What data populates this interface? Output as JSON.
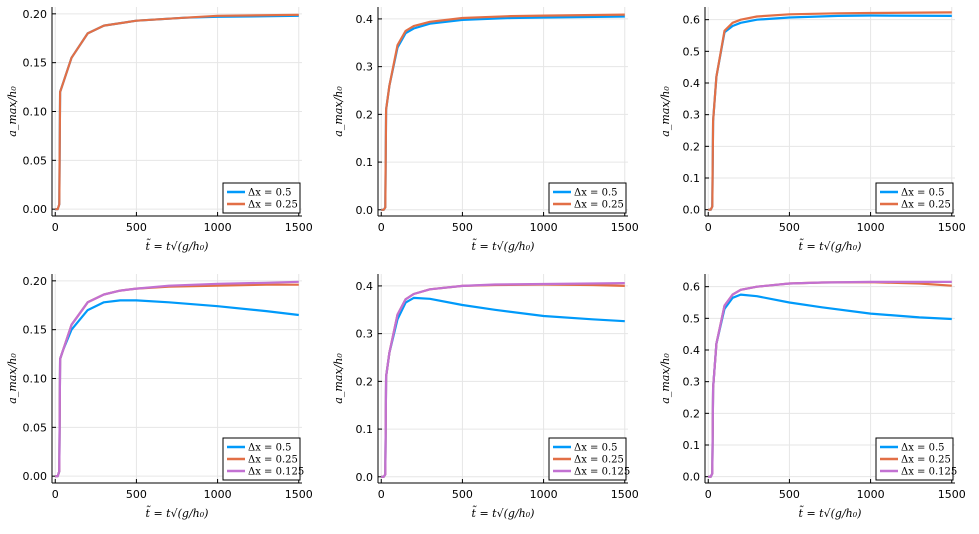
{
  "chart_data": [
    {
      "type": "line",
      "xlabel": "t̃ = t√(g/h₀)",
      "ylabel": "a_max/h₀",
      "xlim": [
        -20,
        1520
      ],
      "ylim": [
        -0.007,
        0.207
      ],
      "xticks": [
        0,
        500,
        1000,
        1500
      ],
      "yticks": [
        0.0,
        0.05,
        0.1,
        0.15,
        0.2
      ],
      "ytick_labels": [
        "0.00",
        "0.05",
        "0.10",
        "0.15",
        "0.20"
      ],
      "grid": true,
      "legend_position": "bottom-right",
      "x": [
        0,
        15,
        25,
        30,
        50,
        100,
        200,
        300,
        500,
        800,
        1000,
        1500
      ],
      "series": [
        {
          "name": "Δx = 0.5",
          "color": "#009AFA",
          "values": [
            0.0,
            0.0,
            0.005,
            0.12,
            0.13,
            0.155,
            0.18,
            0.188,
            0.193,
            0.196,
            0.197,
            0.198
          ]
        },
        {
          "name": "Δx = 0.25",
          "color": "#E26F46",
          "values": [
            0.0,
            0.0,
            0.005,
            0.12,
            0.13,
            0.155,
            0.18,
            0.188,
            0.193,
            0.196,
            0.198,
            0.199
          ]
        }
      ]
    },
    {
      "type": "line",
      "xlabel": "t̃ = t√(g/h₀)",
      "ylabel": "a_max/h₀",
      "xlim": [
        -20,
        1520
      ],
      "ylim": [
        -0.013,
        0.425
      ],
      "xticks": [
        0,
        500,
        1000,
        1500
      ],
      "yticks": [
        0.0,
        0.1,
        0.2,
        0.3,
        0.4
      ],
      "ytick_labels": [
        "0.0",
        "0.1",
        "0.2",
        "0.3",
        "0.4"
      ],
      "grid": true,
      "legend_position": "bottom-right",
      "x": [
        0,
        15,
        25,
        30,
        50,
        100,
        150,
        200,
        300,
        500,
        800,
        1000,
        1500
      ],
      "series": [
        {
          "name": "Δx = 0.5",
          "color": "#009AFA",
          "values": [
            0.0,
            0.0,
            0.005,
            0.21,
            0.26,
            0.34,
            0.37,
            0.38,
            0.39,
            0.398,
            0.402,
            0.403,
            0.405
          ]
        },
        {
          "name": "Δx = 0.25",
          "color": "#E26F46",
          "values": [
            0.0,
            0.0,
            0.005,
            0.21,
            0.26,
            0.345,
            0.375,
            0.385,
            0.394,
            0.402,
            0.406,
            0.407,
            0.409
          ]
        }
      ]
    },
    {
      "type": "line",
      "xlabel": "t̃ = t√(g/h₀)",
      "ylabel": "a_max/h₀",
      "xlim": [
        -20,
        1520
      ],
      "ylim": [
        -0.02,
        0.64
      ],
      "xticks": [
        0,
        500,
        1000,
        1500
      ],
      "yticks": [
        0.0,
        0.1,
        0.2,
        0.3,
        0.4,
        0.5,
        0.6
      ],
      "ytick_labels": [
        "0.0",
        "0.1",
        "0.2",
        "0.3",
        "0.4",
        "0.5",
        "0.6"
      ],
      "grid": true,
      "legend_position": "bottom-right",
      "x": [
        0,
        15,
        25,
        30,
        50,
        100,
        150,
        200,
        300,
        500,
        800,
        1000,
        1500
      ],
      "series": [
        {
          "name": "Δx = 0.5",
          "color": "#009AFA",
          "values": [
            0.0,
            0.0,
            0.01,
            0.28,
            0.42,
            0.56,
            0.58,
            0.59,
            0.6,
            0.607,
            0.612,
            0.613,
            0.612
          ]
        },
        {
          "name": "Δx = 0.25",
          "color": "#E26F46",
          "values": [
            0.0,
            0.0,
            0.01,
            0.28,
            0.42,
            0.565,
            0.59,
            0.6,
            0.61,
            0.617,
            0.62,
            0.621,
            0.623
          ]
        }
      ]
    },
    {
      "type": "line",
      "xlabel": "t̃ = t√(g/h₀)",
      "ylabel": "a_max/h₀",
      "xlim": [
        -20,
        1520
      ],
      "ylim": [
        -0.007,
        0.207
      ],
      "xticks": [
        0,
        500,
        1000,
        1500
      ],
      "yticks": [
        0.0,
        0.05,
        0.1,
        0.15,
        0.2
      ],
      "ytick_labels": [
        "0.00",
        "0.05",
        "0.10",
        "0.15",
        "0.20"
      ],
      "grid": true,
      "legend_position": "bottom-right",
      "x": [
        0,
        15,
        25,
        30,
        50,
        100,
        200,
        300,
        400,
        500,
        700,
        1000,
        1300,
        1500
      ],
      "series": [
        {
          "name": "Δx = 0.5",
          "color": "#009AFA",
          "values": [
            0.0,
            0.0,
            0.005,
            0.12,
            0.13,
            0.15,
            0.17,
            0.178,
            0.18,
            0.18,
            0.178,
            0.174,
            0.169,
            0.165
          ]
        },
        {
          "name": "Δx = 0.25",
          "color": "#E26F46",
          "values": [
            0.0,
            0.0,
            0.005,
            0.12,
            0.13,
            0.155,
            0.178,
            0.186,
            0.19,
            0.192,
            0.194,
            0.195,
            0.196,
            0.196
          ]
        },
        {
          "name": "Δx = 0.125",
          "color": "#C271D2",
          "values": [
            0.0,
            0.0,
            0.005,
            0.12,
            0.13,
            0.155,
            0.178,
            0.186,
            0.19,
            0.192,
            0.195,
            0.197,
            0.198,
            0.199
          ]
        }
      ]
    },
    {
      "type": "line",
      "xlabel": "t̃ = t√(g/h₀)",
      "ylabel": "a_max/h₀",
      "xlim": [
        -20,
        1520
      ],
      "ylim": [
        -0.013,
        0.425
      ],
      "xticks": [
        0,
        500,
        1000,
        1500
      ],
      "yticks": [
        0.0,
        0.1,
        0.2,
        0.3,
        0.4
      ],
      "ytick_labels": [
        "0.0",
        "0.1",
        "0.2",
        "0.3",
        "0.4"
      ],
      "grid": true,
      "legend_position": "bottom-right",
      "x": [
        0,
        15,
        25,
        30,
        50,
        100,
        150,
        200,
        300,
        500,
        700,
        1000,
        1300,
        1500
      ],
      "series": [
        {
          "name": "Δx = 0.5",
          "color": "#009AFA",
          "values": [
            0.0,
            0.0,
            0.005,
            0.21,
            0.26,
            0.33,
            0.365,
            0.375,
            0.373,
            0.36,
            0.35,
            0.337,
            0.33,
            0.326
          ]
        },
        {
          "name": "Δx = 0.25",
          "color": "#E26F46",
          "values": [
            0.0,
            0.0,
            0.005,
            0.21,
            0.26,
            0.34,
            0.372,
            0.383,
            0.393,
            0.4,
            0.402,
            0.403,
            0.402,
            0.4
          ]
        },
        {
          "name": "Δx = 0.125",
          "color": "#C271D2",
          "values": [
            0.0,
            0.0,
            0.005,
            0.21,
            0.26,
            0.34,
            0.372,
            0.383,
            0.393,
            0.4,
            0.403,
            0.404,
            0.405,
            0.406
          ]
        }
      ]
    },
    {
      "type": "line",
      "xlabel": "t̃ = t√(g/h₀)",
      "ylabel": "a_max/h₀",
      "xlim": [
        -20,
        1520
      ],
      "ylim": [
        -0.02,
        0.64
      ],
      "xticks": [
        0,
        500,
        1000,
        1500
      ],
      "yticks": [
        0.0,
        0.1,
        0.2,
        0.3,
        0.4,
        0.5,
        0.6
      ],
      "ytick_labels": [
        "0.0",
        "0.1",
        "0.2",
        "0.3",
        "0.4",
        "0.5",
        "0.6"
      ],
      "grid": true,
      "legend_position": "bottom-right",
      "x": [
        0,
        15,
        25,
        30,
        50,
        100,
        150,
        200,
        300,
        500,
        700,
        1000,
        1300,
        1500
      ],
      "series": [
        {
          "name": "Δx = 0.5",
          "color": "#009AFA",
          "values": [
            0.0,
            0.0,
            0.01,
            0.28,
            0.42,
            0.53,
            0.565,
            0.575,
            0.57,
            0.55,
            0.535,
            0.515,
            0.503,
            0.498
          ]
        },
        {
          "name": "Δx = 0.25",
          "color": "#E26F46",
          "values": [
            0.0,
            0.0,
            0.01,
            0.28,
            0.42,
            0.54,
            0.575,
            0.59,
            0.6,
            0.61,
            0.613,
            0.614,
            0.61,
            0.603
          ]
        },
        {
          "name": "Δx = 0.125",
          "color": "#C271D2",
          "values": [
            0.0,
            0.0,
            0.01,
            0.28,
            0.42,
            0.54,
            0.575,
            0.59,
            0.6,
            0.61,
            0.613,
            0.615,
            0.615,
            0.615
          ]
        }
      ]
    }
  ]
}
